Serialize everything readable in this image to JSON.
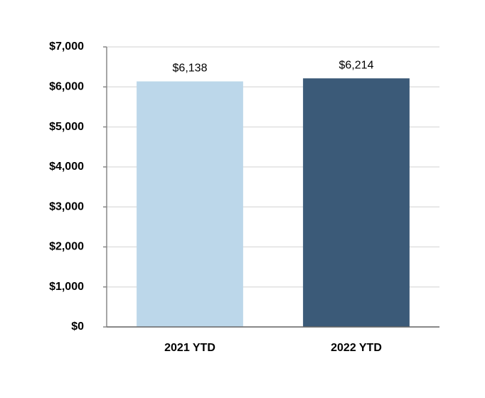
{
  "chart_data": {
    "type": "bar",
    "categories": [
      "2021 YTD",
      "2022 YTD"
    ],
    "values": [
      6138,
      6214
    ],
    "value_labels": [
      "$6,138",
      "$6,214"
    ],
    "colors": [
      "#bcd7ea",
      "#3b5a78"
    ],
    "ylim": [
      0,
      7000
    ],
    "yticks": [
      {
        "value": 0,
        "label": "$0"
      },
      {
        "value": 1000,
        "label": "$1,000"
      },
      {
        "value": 2000,
        "label": "$2,000"
      },
      {
        "value": 3000,
        "label": "$3,000"
      },
      {
        "value": 4000,
        "label": "$4,000"
      },
      {
        "value": 5000,
        "label": "$5,000"
      },
      {
        "value": 6000,
        "label": "$6,000"
      },
      {
        "value": 7000,
        "label": "$7,000"
      }
    ],
    "grid": true
  }
}
